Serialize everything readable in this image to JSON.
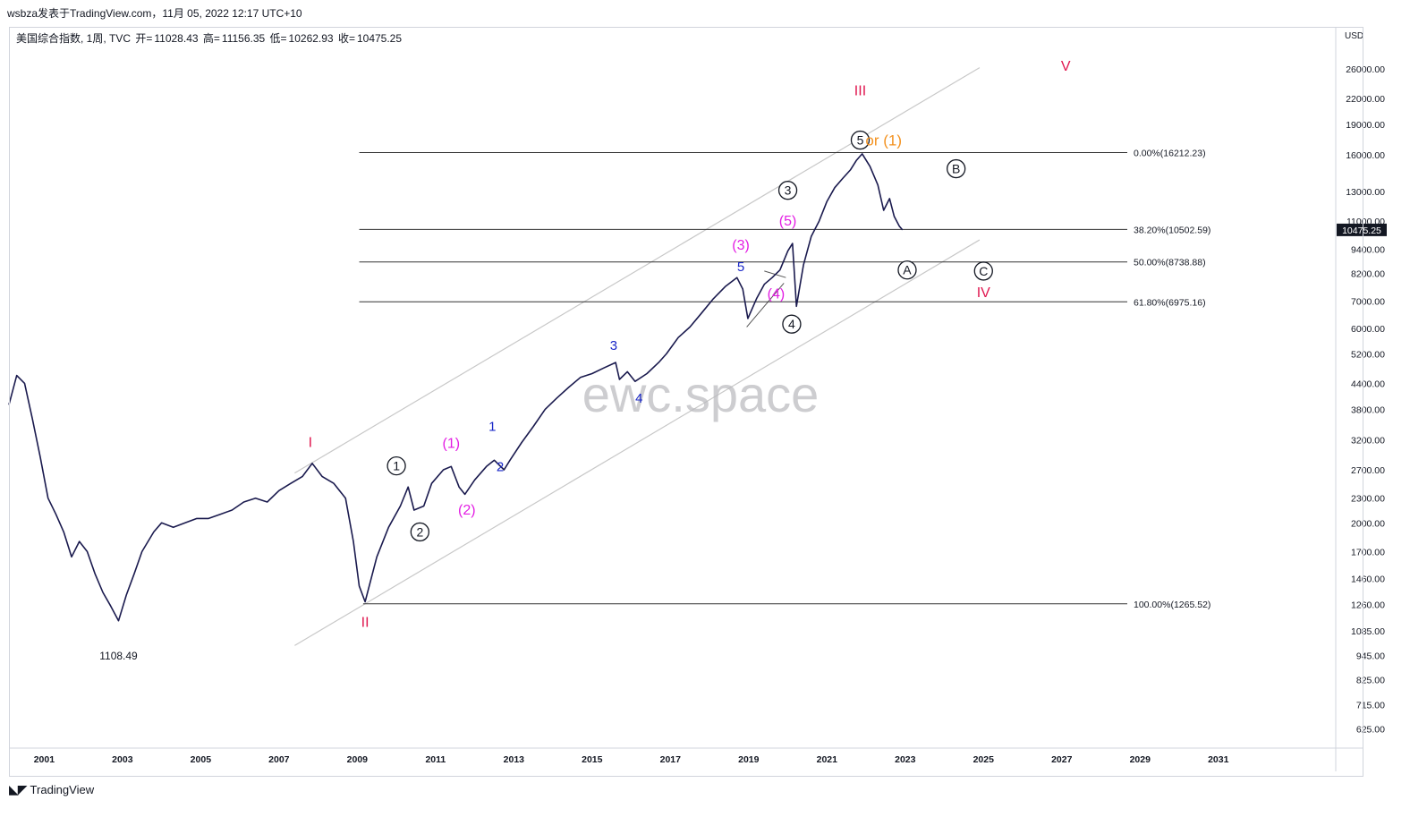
{
  "caption": "wsbza发表于TradingView.com，11月 05, 2022 12:17 UTC+10",
  "ohlc": {
    "name": "美国综合指数, 1周, TVC",
    "open_label": "开=",
    "open": "11028.43",
    "high_label": "高=",
    "high": "11156.35",
    "low_label": "低=",
    "low": "10262.93",
    "close_label": "收=",
    "close": "10475.25"
  },
  "logo": "TradingView",
  "watermark": "ewc.space",
  "colors": {
    "price": "#1a1a4e",
    "red": "#e0164f",
    "magenta": "#e31ee3",
    "blue": "#1a28c8",
    "orange": "#f39220",
    "black": "#131722",
    "channel": "#c8c8c8",
    "fib": "#333333",
    "price_badge": "#131722"
  },
  "chart_data": {
    "type": "line",
    "scale": "log",
    "currency": "USD",
    "x_ticks": [
      "2001",
      "2003",
      "2005",
      "2007",
      "2009",
      "2011",
      "2013",
      "2015",
      "2017",
      "2019",
      "2021",
      "2023",
      "2025",
      "2027",
      "2029",
      "2031"
    ],
    "y_ticks": [
      26000,
      22000,
      19000,
      16000,
      13000,
      11000,
      9400,
      8200,
      7000,
      6000,
      5200,
      4400,
      3800,
      3200,
      2700,
      2300,
      2000,
      1700,
      1460,
      1260,
      1085,
      945,
      825,
      715,
      625
    ],
    "y_tick_labels": [
      "26000.00",
      "22000.00",
      "19000.00",
      "16000.00",
      "13000.00",
      "11000.00",
      "9400.00",
      "8200.00",
      "7000.00",
      "6000.00",
      "5200.00",
      "4400.00",
      "3800.00",
      "3200.00",
      "2700.00",
      "2300.00",
      "2000.00",
      "1700.00",
      "1460.00",
      "1260.00",
      "1085.00",
      "945.00",
      "825.00",
      "715.00",
      "625.00"
    ],
    "ylim": [
      560,
      33000
    ],
    "xlim": [
      2000.1,
      2034.0
    ],
    "last_price": 10475.25,
    "last_price_label": "10475.25",
    "low_label": "1108.49",
    "series": [
      {
        "x": [
          2000.1,
          2000.3,
          2000.5,
          2000.7,
          2000.9,
          2001.1,
          2001.3,
          2001.5,
          2001.7,
          2001.9,
          2002.1,
          2002.3,
          2002.5,
          2002.7,
          2002.9,
          2003.1,
          2003.3,
          2003.5,
          2003.8,
          2004.0,
          2004.3,
          2004.6,
          2004.9,
          2005.2,
          2005.5,
          2005.8,
          2006.1,
          2006.4,
          2006.7,
          2007.0,
          2007.3,
          2007.6,
          2007.85,
          2008.1,
          2008.4,
          2008.7,
          2008.9,
          2009.05,
          2009.2,
          2009.5,
          2009.8,
          2010.1,
          2010.3,
          2010.45,
          2010.7,
          2010.9,
          2011.2,
          2011.4,
          2011.6,
          2011.75,
          2012.0,
          2012.3,
          2012.5,
          2012.75,
          2012.9,
          2013.2,
          2013.5,
          2013.8,
          2014.1,
          2014.4,
          2014.7,
          2015.0,
          2015.3,
          2015.6,
          2015.7,
          2015.9,
          2016.1,
          2016.4,
          2016.7,
          2016.9,
          2017.2,
          2017.5,
          2017.8,
          2018.1,
          2018.4,
          2018.7,
          2018.85,
          2018.98,
          2019.2,
          2019.4,
          2019.6,
          2019.8,
          2020.0,
          2020.12,
          2020.22,
          2020.4,
          2020.6,
          2020.8,
          2021.0,
          2021.2,
          2021.4,
          2021.6,
          2021.75,
          2021.9,
          2022.1,
          2022.3,
          2022.45,
          2022.6,
          2022.72,
          2022.85,
          2022.93
        ],
        "y": [
          3900,
          4600,
          4400,
          3600,
          2900,
          2300,
          2100,
          1900,
          1650,
          1800,
          1700,
          1500,
          1350,
          1250,
          1150,
          1330,
          1500,
          1700,
          1900,
          2000,
          1950,
          2000,
          2050,
          2050,
          2100,
          2150,
          2250,
          2300,
          2250,
          2400,
          2500,
          2600,
          2800,
          2600,
          2500,
          2300,
          1800,
          1400,
          1280,
          1650,
          1950,
          2200,
          2450,
          2150,
          2200,
          2500,
          2700,
          2750,
          2450,
          2350,
          2550,
          2750,
          2850,
          2700,
          2850,
          3150,
          3450,
          3800,
          4050,
          4300,
          4550,
          4650,
          4800,
          4950,
          4500,
          4700,
          4450,
          4650,
          4950,
          5200,
          5700,
          6050,
          6550,
          7100,
          7600,
          8000,
          7500,
          6350,
          7100,
          7700,
          8000,
          8350,
          9300,
          9700,
          6800,
          8600,
          10100,
          11000,
          12300,
          13300,
          14000,
          14700,
          15500,
          16100,
          15000,
          13500,
          11700,
          12500,
          11300,
          10700,
          10475
        ]
      }
    ],
    "fib_levels": [
      {
        "label": "0.00%(16212.23)",
        "value": 16212.23
      },
      {
        "label": "38.20%(10502.59)",
        "value": 10502.59
      },
      {
        "label": "50.00%(8738.88)",
        "value": 8738.88
      },
      {
        "label": "61.80%(6975.16)",
        "value": 6975.16
      },
      {
        "label": "100.00%(1265.52)",
        "value": 1265.52
      }
    ],
    "channel_lines": [
      {
        "from": [
          2007.4,
          2650
        ],
        "to": [
          2024.9,
          26200
        ]
      },
      {
        "from": [
          2007.4,
          1000
        ],
        "to": [
          2024.9,
          9900
        ]
      }
    ],
    "wave_labels": [
      {
        "text": "I",
        "x": 2007.8,
        "y": 3150,
        "color": "red",
        "style": "plain"
      },
      {
        "text": "II",
        "x": 2009.2,
        "y": 1140,
        "color": "red",
        "style": "plain"
      },
      {
        "text": "III",
        "x": 2021.85,
        "y": 23000,
        "color": "red",
        "style": "plain"
      },
      {
        "text": "IV",
        "x": 2025.0,
        "y": 7350,
        "color": "red",
        "style": "plain"
      },
      {
        "text": "V",
        "x": 2027.1,
        "y": 26400,
        "color": "red",
        "style": "plain"
      },
      {
        "text": "1",
        "x": 2010.0,
        "y": 2760,
        "color": "black",
        "style": "circle"
      },
      {
        "text": "2",
        "x": 2010.6,
        "y": 1900,
        "color": "black",
        "style": "circle"
      },
      {
        "text": "3",
        "x": 2020.0,
        "y": 13100,
        "color": "black",
        "style": "circle"
      },
      {
        "text": "4",
        "x": 2020.1,
        "y": 6150,
        "color": "black",
        "style": "circle"
      },
      {
        "text": "5",
        "x": 2021.85,
        "y": 17400,
        "color": "black",
        "style": "circle"
      },
      {
        "text": "A",
        "x": 2023.05,
        "y": 8350,
        "color": "black",
        "style": "circle"
      },
      {
        "text": "B",
        "x": 2024.3,
        "y": 14800,
        "color": "black",
        "style": "circle"
      },
      {
        "text": "C",
        "x": 2025.0,
        "y": 8300,
        "color": "black",
        "style": "circle"
      },
      {
        "text": "(1)",
        "x": 2011.4,
        "y": 3130,
        "color": "magenta",
        "style": "plain"
      },
      {
        "text": "(2)",
        "x": 2011.8,
        "y": 2150,
        "color": "magenta",
        "style": "plain"
      },
      {
        "text": "(3)",
        "x": 2018.8,
        "y": 9600,
        "color": "magenta",
        "style": "plain"
      },
      {
        "text": "(4)",
        "x": 2019.7,
        "y": 7300,
        "color": "magenta",
        "style": "plain"
      },
      {
        "text": "(5)",
        "x": 2020.0,
        "y": 11000,
        "color": "magenta",
        "style": "plain"
      },
      {
        "text": "1",
        "x": 2012.45,
        "y": 3450,
        "color": "blue",
        "style": "plain"
      },
      {
        "text": "2",
        "x": 2012.65,
        "y": 2750,
        "color": "blue",
        "style": "plain"
      },
      {
        "text": "3",
        "x": 2015.55,
        "y": 5450,
        "color": "blue",
        "style": "plain"
      },
      {
        "text": "4",
        "x": 2016.2,
        "y": 4050,
        "color": "blue",
        "style": "plain"
      },
      {
        "text": "5",
        "x": 2018.8,
        "y": 8500,
        "color": "blue",
        "style": "plain"
      }
    ],
    "alt_label": {
      "text": "or (1)",
      "x": 2022.45,
      "y": 17400,
      "color": "orange"
    }
  }
}
